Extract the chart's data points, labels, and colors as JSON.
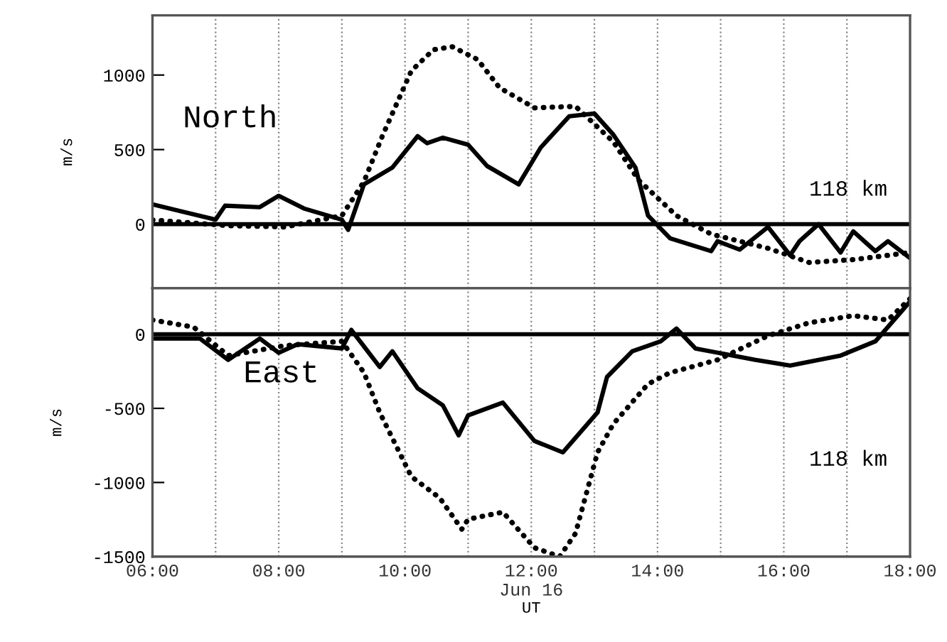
{
  "chart_data": [
    {
      "type": "line",
      "ylabel": "m/s",
      "annotations": [
        "North",
        "118 km"
      ],
      "xlim": [
        6,
        18
      ],
      "xticks": [
        6,
        7,
        8,
        9,
        10,
        11,
        12,
        13,
        14,
        15,
        16,
        17,
        18
      ],
      "ylim": [
        -430,
        1400
      ],
      "yticks": [
        0,
        500,
        1000
      ],
      "tick_labels": "y",
      "grid": "x",
      "ref_lines": [
        {
          "axis": "y",
          "value": 0,
          "color": "#000000"
        }
      ],
      "series": [
        {
          "color": "#000000",
          "line_style": "solid",
          "x": [
            6.0,
            7.0,
            7.15,
            7.7,
            8.0,
            8.4,
            9.0,
            9.1,
            9.35,
            9.8,
            10.2,
            10.35,
            10.6,
            11.0,
            11.3,
            11.8,
            12.15,
            12.6,
            13.0,
            13.3,
            13.65,
            13.85,
            14.2,
            14.85,
            14.95,
            15.3,
            15.75,
            16.1,
            16.25,
            16.55,
            16.9,
            17.1,
            17.45,
            17.65,
            18.0
          ],
          "values": [
            133,
            30,
            124,
            114,
            190,
            105,
            30,
            -38,
            267,
            380,
            590,
            543,
            580,
            533,
            390,
            267,
            514,
            723,
            742,
            600,
            380,
            57,
            -95,
            -181,
            -114,
            -171,
            -19,
            -209,
            -114,
            0,
            -190,
            -48,
            -181,
            -114,
            -228
          ]
        },
        {
          "color": "#000000",
          "line_style": "dotted",
          "x": [
            6.0,
            7.2,
            8.1,
            9.0,
            9.35,
            9.65,
            10.1,
            10.45,
            10.75,
            11.15,
            11.5,
            12.05,
            12.7,
            13.3,
            13.7,
            14.3,
            14.85,
            15.75,
            16.4,
            17.1,
            17.65,
            18.0
          ],
          "values": [
            28,
            -10,
            -19,
            57,
            285,
            600,
            1028,
            1170,
            1190,
            1104,
            914,
            780,
            790,
            552,
            295,
            57,
            -67,
            -162,
            -257,
            -238,
            -209,
            -190
          ]
        }
      ]
    },
    {
      "type": "line",
      "ylabel": "m/s",
      "xlabel": "UT",
      "annotations": [
        "East",
        "118 km"
      ],
      "xlim": [
        6,
        18
      ],
      "xticks": [
        {
          "value": 6,
          "label": "06:00"
        },
        {
          "value": 7,
          "label": null
        },
        {
          "value": 8,
          "label": "08:00"
        },
        {
          "value": 9,
          "label": null
        },
        {
          "value": 10,
          "label": "10:00"
        },
        {
          "value": 11,
          "label": null
        },
        {
          "value": 12,
          "label": "12:00\nJun 16"
        },
        {
          "value": 13,
          "label": null
        },
        {
          "value": 14,
          "label": "14:00"
        },
        {
          "value": 15,
          "label": null
        },
        {
          "value": 16,
          "label": "16:00"
        },
        {
          "value": 17,
          "label": null
        },
        {
          "value": 18,
          "label": "18:00"
        }
      ],
      "ylim": [
        -1500,
        310
      ],
      "yticks": [
        0,
        -500,
        -1000,
        -1500
      ],
      "grid": "x",
      "ref_lines": [
        {
          "axis": "y",
          "value": 0,
          "color": "#000000"
        }
      ],
      "series": [
        {
          "color": "#000000",
          "line_style": "solid",
          "x": [
            6.0,
            6.75,
            7.2,
            7.7,
            8.0,
            8.3,
            9.0,
            9.15,
            9.6,
            9.8,
            10.2,
            10.6,
            10.85,
            11.0,
            11.55,
            12.05,
            12.5,
            13.05,
            13.2,
            13.6,
            14.05,
            14.3,
            14.6,
            15.55,
            16.1,
            16.9,
            17.45,
            18.0
          ],
          "values": [
            -29,
            -29,
            -173,
            -29,
            -125,
            -67,
            -96,
            29,
            -221,
            -115,
            -365,
            -480,
            -682,
            -547,
            -461,
            -720,
            -797,
            -528,
            -288,
            -115,
            -48,
            38,
            -96,
            -173,
            -211,
            -144,
            -48,
            221
          ]
        },
        {
          "color": "#000000",
          "line_style": "dotted",
          "x": [
            6.0,
            6.65,
            7.2,
            8.1,
            9.0,
            9.35,
            9.6,
            10.1,
            10.55,
            10.9,
            11.0,
            11.55,
            12.05,
            12.45,
            12.7,
            13.05,
            13.3,
            13.85,
            14.2,
            14.95,
            15.75,
            16.4,
            17.1,
            17.65,
            18.0
          ],
          "values": [
            96,
            48,
            -144,
            -77,
            -48,
            -259,
            -528,
            -960,
            -1104,
            -1315,
            -1248,
            -1200,
            -1440,
            -1500,
            -1344,
            -797,
            -605,
            -336,
            -259,
            -173,
            -10,
            77,
            125,
            96,
            240
          ]
        }
      ]
    }
  ]
}
